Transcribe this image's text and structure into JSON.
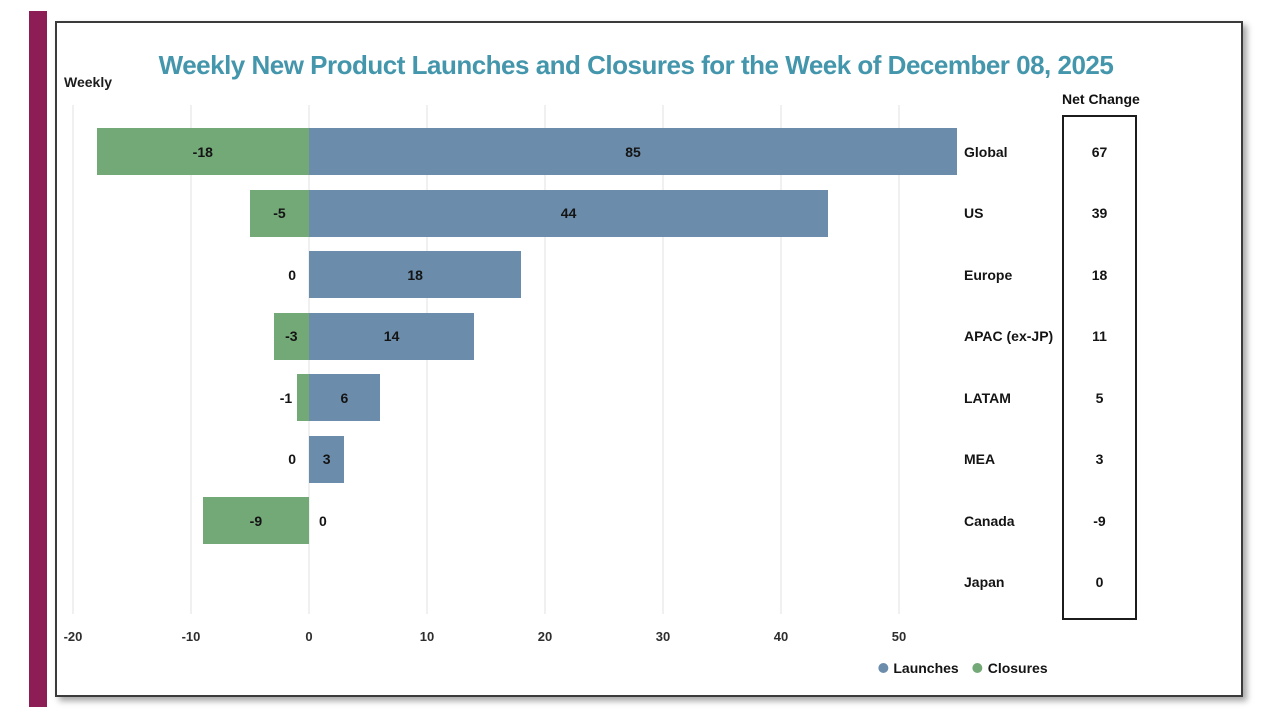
{
  "accent": {
    "left_bar_color": "#8c1d55"
  },
  "frame": {
    "border_color": "#3b3b3b"
  },
  "chart_data": {
    "type": "bar",
    "orientation": "horizontal-diverging",
    "title": "Weekly New Product Launches and Closures for the Week of December 08, 2025",
    "title_color": "#4396ab",
    "corner_label": "Weekly",
    "categories": [
      "Global",
      "US",
      "Europe",
      "APAC (ex-JP)",
      "LATAM",
      "MEA",
      "Canada",
      "Japan"
    ],
    "series": [
      {
        "name": "Launches",
        "color": "#6b8dab",
        "values": [
          85,
          44,
          18,
          14,
          6,
          3,
          0,
          0
        ]
      },
      {
        "name": "Closures",
        "color": "#73a877",
        "values": [
          -18,
          -5,
          0,
          -3,
          -1,
          0,
          -9,
          0
        ]
      }
    ],
    "net_change": {
      "header": "Net Change",
      "values": [
        67,
        39,
        18,
        11,
        5,
        3,
        -9,
        0
      ]
    },
    "x_ticks": [
      -20,
      -10,
      0,
      10,
      20,
      30,
      40,
      50
    ],
    "xlim": [
      -21.3,
      55
    ],
    "grid": true,
    "legend_position": "bottom"
  }
}
